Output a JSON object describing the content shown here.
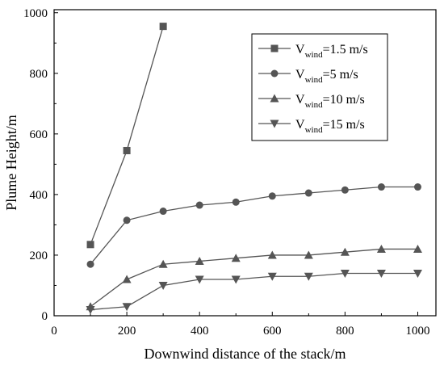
{
  "chart_data": {
    "type": "line",
    "xlabel": "Downwind distance of the stack/m",
    "ylabel": "Plume Height/m",
    "xlim": [
      0,
      1050
    ],
    "ylim": [
      0,
      1010
    ],
    "xticks": [
      0,
      200,
      400,
      600,
      800,
      1000
    ],
    "yticks": [
      0,
      200,
      400,
      600,
      800,
      1000
    ],
    "grid": false,
    "legend_position": "top-right",
    "series": [
      {
        "name": "Vwind=1.5 m/s",
        "label_main": "V",
        "label_sub": "wind",
        "label_rest": "=1.5 m/s",
        "marker": "square",
        "x": [
          100,
          200,
          300
        ],
        "y": [
          235,
          545,
          955
        ]
      },
      {
        "name": "Vwind=5 m/s",
        "label_main": "V",
        "label_sub": "wind",
        "label_rest": "=5 m/s",
        "marker": "circle",
        "x": [
          100,
          200,
          300,
          400,
          500,
          600,
          700,
          800,
          900,
          1000
        ],
        "y": [
          170,
          315,
          345,
          365,
          375,
          395,
          405,
          415,
          425,
          425
        ]
      },
      {
        "name": "Vwind=10 m/s",
        "label_main": "V",
        "label_sub": "wind",
        "label_rest": "=10 m/s",
        "marker": "triangle-up",
        "x": [
          100,
          200,
          300,
          400,
          500,
          600,
          700,
          800,
          900,
          1000
        ],
        "y": [
          30,
          120,
          170,
          180,
          190,
          200,
          200,
          210,
          220,
          220
        ]
      },
      {
        "name": "Vwind=15 m/s",
        "label_main": "V",
        "label_sub": "wind",
        "label_rest": "=15 m/s",
        "marker": "triangle-down",
        "x": [
          100,
          200,
          300,
          400,
          500,
          600,
          700,
          800,
          900,
          1000
        ],
        "y": [
          20,
          30,
          100,
          120,
          120,
          130,
          130,
          140,
          140,
          140
        ]
      }
    ],
    "colors": {
      "line": "#555555",
      "marker": "#555555",
      "axis": "#000000"
    }
  }
}
